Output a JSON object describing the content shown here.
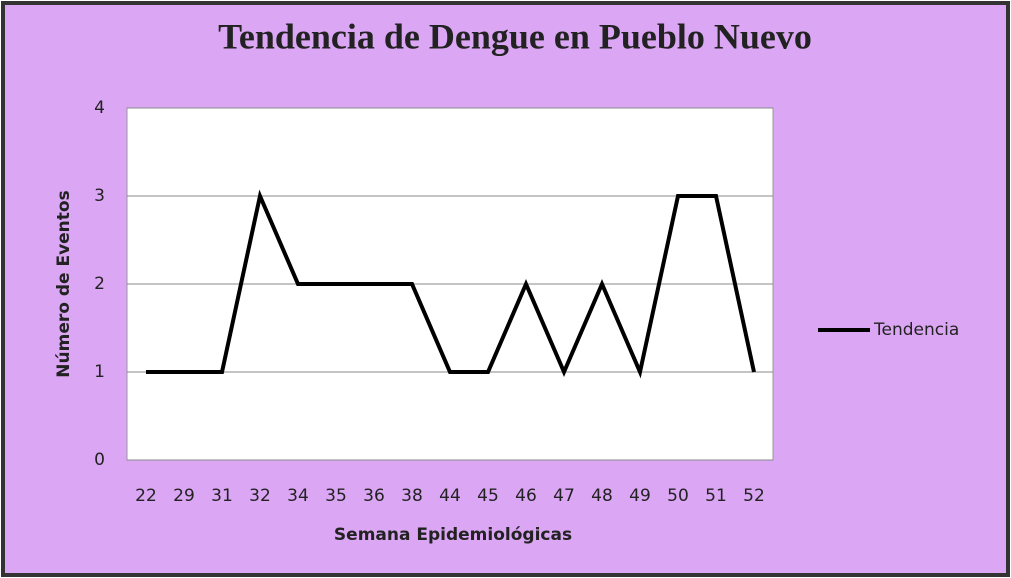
{
  "chart_data": {
    "type": "line",
    "title": "Tendencia de Dengue en Pueblo Nuevo",
    "x_label": "Semana Epidemiológicas",
    "y_label": "Número de Eventos",
    "categories": [
      "22",
      "29",
      "31",
      "32",
      "34",
      "35",
      "36",
      "38",
      "44",
      "45",
      "46",
      "47",
      "48",
      "49",
      "50",
      "51",
      "52"
    ],
    "series": [
      {
        "name": "Tendencia",
        "color": "#000000",
        "values": [
          1,
          1,
          1,
          3,
          2,
          2,
          2,
          2,
          1,
          1,
          2,
          1,
          2,
          1,
          3,
          3,
          1
        ]
      }
    ],
    "ylim": [
      0,
      4
    ],
    "yticks": [
      0,
      1,
      2,
      3,
      4
    ],
    "grid": true,
    "legend": "right"
  }
}
